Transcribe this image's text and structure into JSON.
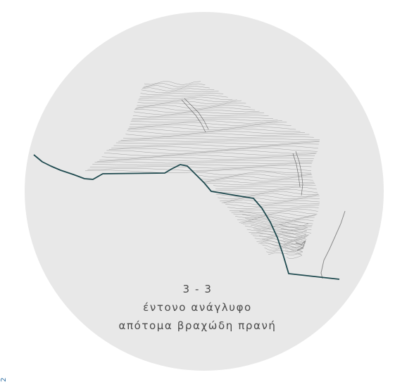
{
  "section": {
    "label": "3 - 3",
    "description_line1": "έντονο ανάγλυφο",
    "description_line2": "απότομα βραχώδη πρανή"
  },
  "page_number": "2",
  "colors": {
    "background": "#ffffff",
    "circle_fill": "#e8e8e8",
    "profile_line": "#1f4a4f",
    "contour_lines": "#8a8a8a",
    "caption_text": "#4a4a4a",
    "page_number_text": "#2f6fa3"
  }
}
